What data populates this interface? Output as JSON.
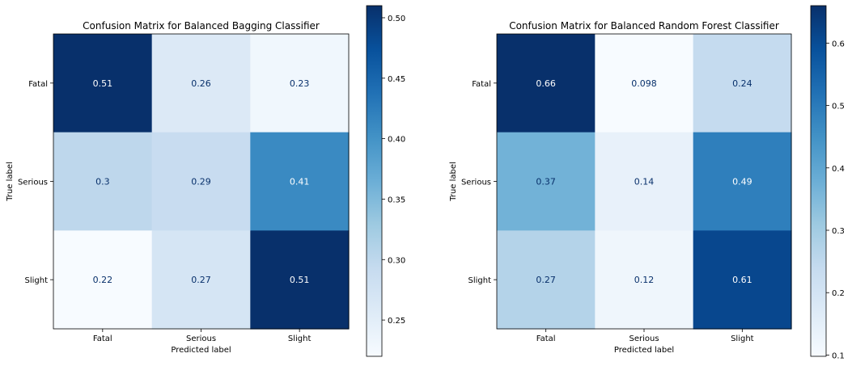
{
  "chart_data": [
    {
      "type": "heatmap",
      "title": "Confusion Matrix for Balanced Bagging Classifier",
      "xlabel": "Predicted label",
      "ylabel": "True label",
      "x_categories": [
        "Fatal",
        "Serious",
        "Slight"
      ],
      "y_categories": [
        "Fatal",
        "Serious",
        "Slight"
      ],
      "values": [
        [
          0.51,
          0.26,
          0.23
        ],
        [
          0.3,
          0.29,
          0.41
        ],
        [
          0.22,
          0.27,
          0.51
        ]
      ],
      "value_labels": [
        [
          "0.51",
          "0.26",
          "0.23"
        ],
        [
          "0.3",
          "0.29",
          "0.41"
        ],
        [
          "0.22",
          "0.27",
          "0.51"
        ]
      ],
      "colormap": "Blues",
      "color_range": [
        0.22,
        0.51
      ],
      "colorbar_ticks": [
        0.25,
        0.3,
        0.35,
        0.4,
        0.45,
        0.5
      ],
      "colorbar_tick_labels": [
        "0.25",
        "0.30",
        "0.35",
        "0.40",
        "0.45",
        "0.50"
      ]
    },
    {
      "type": "heatmap",
      "title": "Confusion Matrix for Balanced Random Forest Classifier",
      "xlabel": "Predicted label",
      "ylabel": "True label",
      "x_categories": [
        "Fatal",
        "Serious",
        "Slight"
      ],
      "y_categories": [
        "Fatal",
        "Serious",
        "Slight"
      ],
      "values": [
        [
          0.66,
          0.098,
          0.24
        ],
        [
          0.37,
          0.14,
          0.49
        ],
        [
          0.27,
          0.12,
          0.61
        ]
      ],
      "value_labels": [
        [
          "0.66",
          "0.098",
          "0.24"
        ],
        [
          "0.37",
          "0.14",
          "0.49"
        ],
        [
          "0.27",
          "0.12",
          "0.61"
        ]
      ],
      "colormap": "Blues",
      "color_range": [
        0.098,
        0.66
      ],
      "colorbar_ticks": [
        0.1,
        0.2,
        0.3,
        0.4,
        0.5,
        0.6
      ],
      "colorbar_tick_labels": [
        "0.1",
        "0.2",
        "0.3",
        "0.4",
        "0.5",
        "0.6"
      ]
    }
  ]
}
